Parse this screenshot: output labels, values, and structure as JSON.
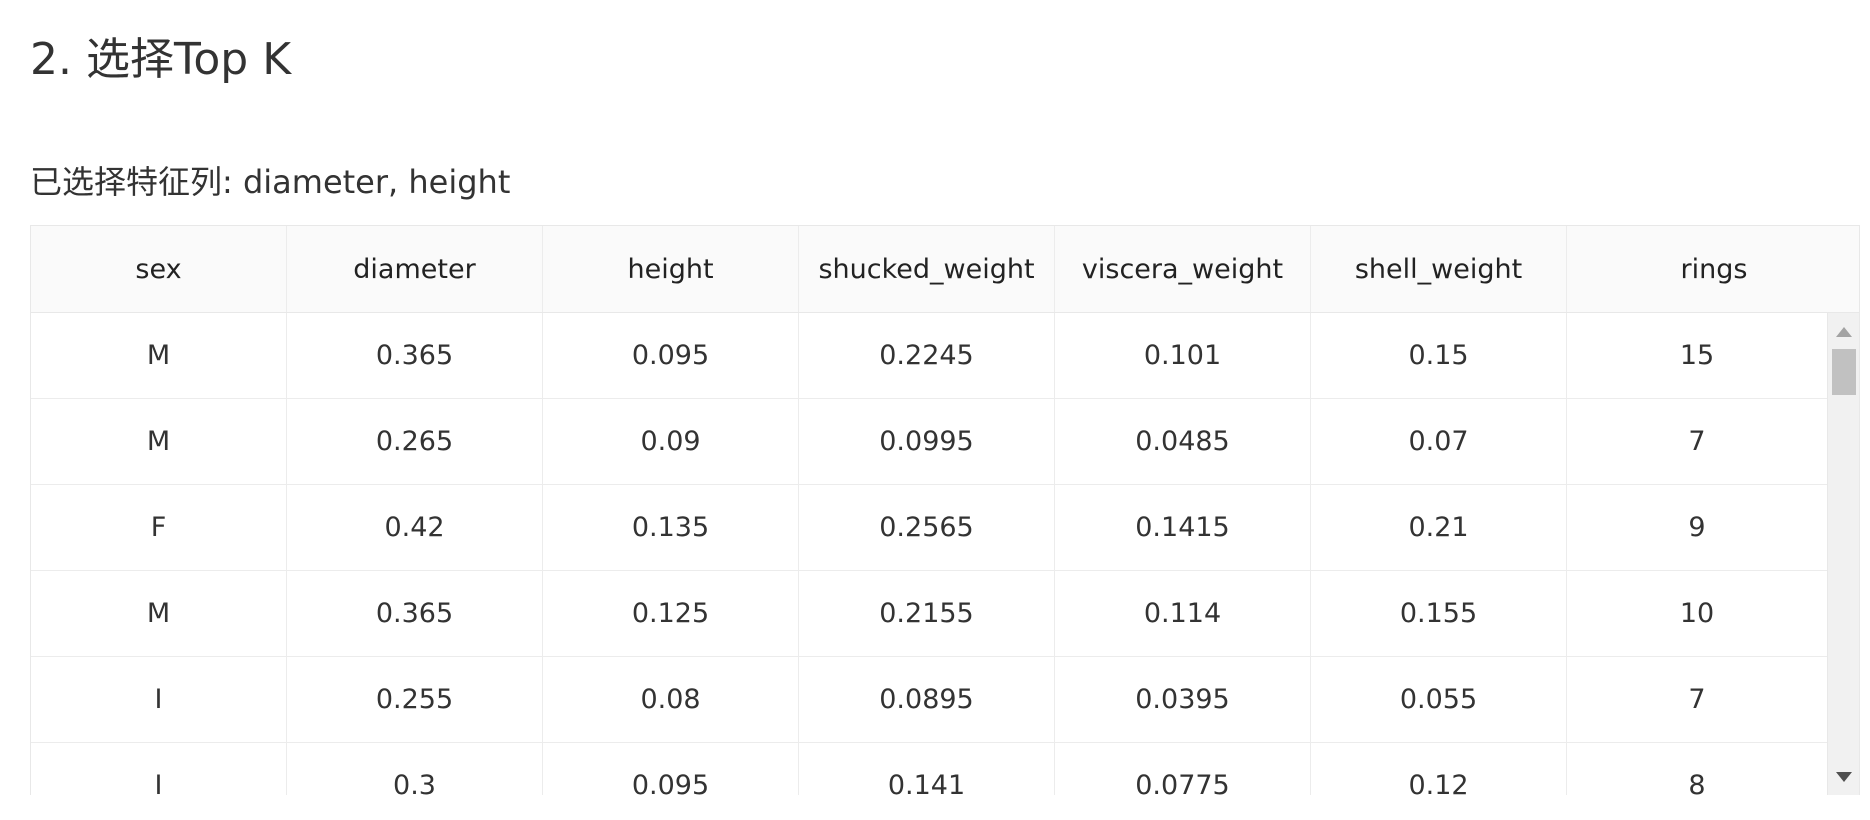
{
  "section": {
    "title": "2. 选择Top K"
  },
  "selection": {
    "text": "已选择特征列: diameter, height"
  },
  "table": {
    "columns": [
      "sex",
      "diameter",
      "height",
      "shucked_weight",
      "viscera_weight",
      "shell_weight",
      "rings"
    ],
    "rows": [
      [
        "M",
        "0.365",
        "0.095",
        "0.2245",
        "0.101",
        "0.15",
        "15"
      ],
      [
        "M",
        "0.265",
        "0.09",
        "0.0995",
        "0.0485",
        "0.07",
        "7"
      ],
      [
        "F",
        "0.42",
        "0.135",
        "0.2565",
        "0.1415",
        "0.21",
        "9"
      ],
      [
        "M",
        "0.365",
        "0.125",
        "0.2155",
        "0.114",
        "0.155",
        "10"
      ],
      [
        "I",
        "0.255",
        "0.08",
        "0.0895",
        "0.0395",
        "0.055",
        "7"
      ],
      [
        "I",
        "0.3",
        "0.095",
        "0.141",
        "0.0775",
        "0.12",
        "8"
      ]
    ]
  },
  "scrollbar": {
    "position": 0.0,
    "up_icon": "triangle-up-icon",
    "down_icon": "triangle-down-icon"
  }
}
